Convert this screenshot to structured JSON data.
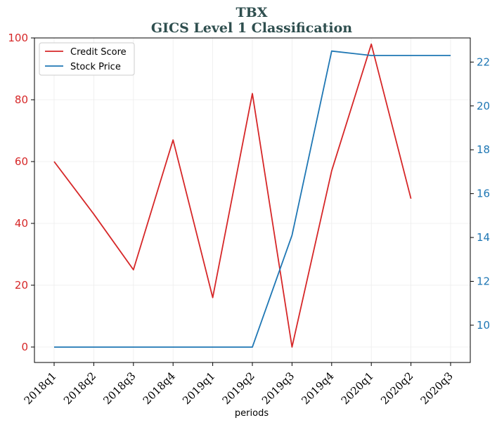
{
  "chart_data": {
    "type": "line",
    "title": "TBX",
    "subtitle": "GICS Level 1 Classification",
    "xlabel": "periods",
    "categories": [
      "2018q1",
      "2018q2",
      "2018q3",
      "2018q4",
      "2019q1",
      "2019q2",
      "2019q3",
      "2019q4",
      "2020q1",
      "2020q2",
      "2020q3"
    ],
    "grid": true,
    "legend_position": "top-left",
    "left_axis": {
      "ylim": [
        -5,
        100
      ],
      "ticks": [
        0,
        20,
        40,
        60,
        80,
        100
      ],
      "color": "#d62728"
    },
    "right_axis": {
      "ylim": [
        8.3,
        23.1
      ],
      "ticks": [
        10,
        12,
        14,
        16,
        18,
        20,
        22
      ],
      "color": "#1f77b4"
    },
    "series": [
      {
        "name": "Credit Score",
        "axis": "left",
        "color": "#d62728",
        "values": [
          60,
          43,
          25,
          67,
          16,
          82,
          0,
          57,
          98,
          48,
          null
        ]
      },
      {
        "name": "Stock Price",
        "axis": "right",
        "color": "#1f77b4",
        "values": [
          9,
          9,
          9,
          9,
          9,
          9,
          14.1,
          22.5,
          22.3,
          22.3,
          22.3
        ]
      }
    ]
  }
}
